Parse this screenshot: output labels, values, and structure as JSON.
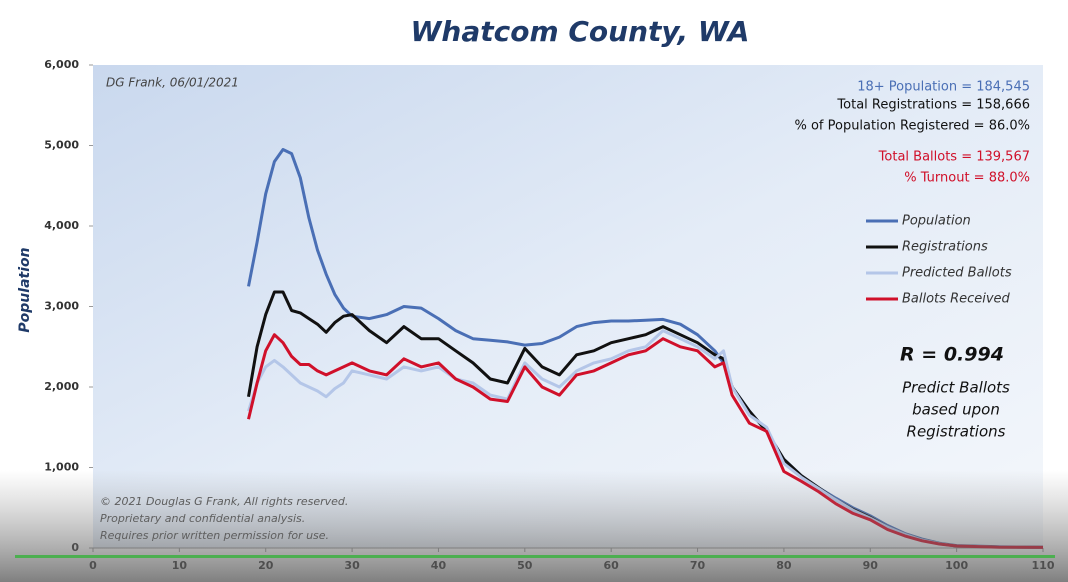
{
  "chart_data": {
    "type": "line",
    "title": "Whatcom County, WA",
    "note": "DG Frank, 06/01/2021",
    "y_label": "Population",
    "x": [
      18,
      19,
      20,
      21,
      22,
      23,
      24,
      25,
      26,
      27,
      28,
      29,
      30,
      32,
      34,
      36,
      38,
      40,
      42,
      44,
      46,
      48,
      50,
      52,
      54,
      56,
      58,
      60,
      62,
      64,
      66,
      68,
      70,
      72,
      73,
      74,
      76,
      78,
      80,
      82,
      84,
      86,
      88,
      90,
      92,
      94,
      96,
      98,
      100,
      105,
      110
    ],
    "series": [
      {
        "name": "Population",
        "color": "#4a6fb5",
        "values": [
          3250,
          3800,
          4400,
          4800,
          4950,
          4900,
          4600,
          4100,
          3700,
          3400,
          3150,
          2980,
          2880,
          2850,
          2900,
          3000,
          2980,
          2850,
          2700,
          2600,
          2580,
          2560,
          2520,
          2540,
          2620,
          2750,
          2800,
          2820,
          2820,
          2830,
          2840,
          2780,
          2650,
          2450,
          2300,
          2000,
          1700,
          1450,
          1100,
          900,
          750,
          620,
          500,
          400,
          280,
          180,
          110,
          60,
          30,
          15,
          10
        ]
      },
      {
        "name": "Registrations",
        "color": "#111111",
        "values": [
          1880,
          2500,
          2900,
          3180,
          3180,
          2950,
          2920,
          2850,
          2780,
          2680,
          2800,
          2880,
          2900,
          2700,
          2550,
          2750,
          2600,
          2600,
          2450,
          2300,
          2100,
          2050,
          2480,
          2250,
          2150,
          2400,
          2450,
          2550,
          2600,
          2650,
          2750,
          2650,
          2550,
          2400,
          2350,
          2000,
          1700,
          1450,
          1100,
          900,
          750,
          600,
          480,
          380,
          260,
          170,
          100,
          55,
          25,
          12,
          8
        ]
      },
      {
        "name": "Predicted Ballots",
        "color": "#b4c6e8",
        "values": [
          1700,
          2050,
          2250,
          2330,
          2250,
          2150,
          2050,
          2000,
          1950,
          1880,
          1980,
          2050,
          2200,
          2150,
          2100,
          2250,
          2200,
          2250,
          2100,
          2050,
          1900,
          1850,
          2300,
          2100,
          2000,
          2200,
          2300,
          2350,
          2450,
          2500,
          2700,
          2600,
          2500,
          2350,
          2450,
          2000,
          1650,
          1500,
          1050,
          880,
          740,
          600,
          470,
          370,
          260,
          170,
          100,
          55,
          25,
          12,
          8
        ]
      },
      {
        "name": "Ballots Received",
        "color": "#d0102a",
        "values": [
          1600,
          2050,
          2450,
          2650,
          2550,
          2380,
          2280,
          2280,
          2200,
          2150,
          2200,
          2250,
          2300,
          2200,
          2150,
          2350,
          2250,
          2300,
          2100,
          2000,
          1850,
          1820,
          2250,
          2000,
          1900,
          2150,
          2200,
          2300,
          2400,
          2450,
          2600,
          2500,
          2450,
          2250,
          2300,
          1900,
          1550,
          1450,
          950,
          830,
          700,
          550,
          430,
          350,
          230,
          150,
          90,
          50,
          25,
          10,
          8
        ]
      }
    ],
    "xlim": [
      0,
      110
    ],
    "xticks": [
      0,
      10,
      20,
      30,
      40,
      50,
      60,
      70,
      80,
      90,
      100,
      110
    ],
    "ylim": [
      0,
      6000
    ],
    "yticks": [
      0,
      {
        "value": 1000,
        "label": "1,000"
      },
      {
        "value": 2000,
        "label": "2,000"
      },
      {
        "value": 3000,
        "label": "3,000"
      },
      {
        "value": 4000,
        "label": "4,000"
      },
      {
        "value": 5000,
        "label": "5,000"
      },
      {
        "value": 6000,
        "label": "6,000"
      }
    ],
    "stats": [
      {
        "text": "18+ Population = 184,545",
        "color": "#4a6fb5"
      },
      {
        "text": "Total Registrations = 158,666",
        "color": "#111111"
      },
      {
        "text": "% of Population Registered = 86.0%",
        "color": "#111111"
      },
      {
        "text": "Total Ballots = 139,567",
        "color": "#d0102a"
      },
      {
        "text": "% Turnout = 88.0%",
        "color": "#d0102a"
      }
    ],
    "r_value": "R = 0.994",
    "r_caption": [
      "Predict Ballots",
      "based upon",
      "Registrations"
    ],
    "copyright": [
      "© 2021 Douglas G Frank, All rights reserved.",
      "Proprietary and confidential analysis.",
      "Requires prior written permission for use."
    ]
  }
}
